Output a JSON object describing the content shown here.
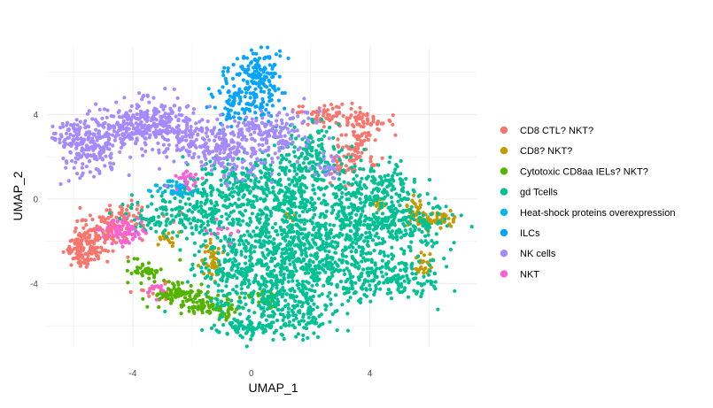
{
  "chart_data": {
    "type": "scatter",
    "xlabel": "UMAP_1",
    "ylabel": "UMAP_2",
    "xlim": [
      -6.9,
      7.6
    ],
    "ylim": [
      -7.0,
      7.2
    ],
    "x_ticks": [
      -4,
      0,
      4
    ],
    "y_ticks": [
      -4,
      0,
      4
    ],
    "x_tick_labels": [
      "-4",
      "0",
      "4"
    ],
    "y_tick_labels": [
      "-4",
      "0",
      "4"
    ],
    "grid": true,
    "theme": "minimal",
    "legend_position": "right",
    "series": [
      {
        "name": "CD8 CTL? NKT?",
        "color": "#F8766D",
        "clusters": [
          {
            "cx": -5.6,
            "cy": -2.3,
            "sx": 0.35,
            "sy": 0.45,
            "n": 140
          },
          {
            "cx": -4.9,
            "cy": -1.5,
            "sx": 0.45,
            "sy": 0.35,
            "n": 90
          },
          {
            "cx": -4.2,
            "cy": -0.8,
            "sx": 0.5,
            "sy": 0.3,
            "n": 50
          },
          {
            "cx": 2.7,
            "cy": 4.0,
            "sx": 0.6,
            "sy": 0.3,
            "n": 60
          },
          {
            "cx": 3.5,
            "cy": 2.4,
            "sx": 0.35,
            "sy": 0.7,
            "n": 80
          },
          {
            "cx": 3.9,
            "cy": 3.7,
            "sx": 0.45,
            "sy": 0.3,
            "n": 45
          },
          {
            "cx": 3.0,
            "cy": 1.5,
            "sx": 0.25,
            "sy": 0.5,
            "n": 30
          },
          {
            "cx": -3.2,
            "cy": -4.4,
            "sx": 0.3,
            "sy": 0.2,
            "n": 15
          }
        ]
      },
      {
        "name": "CD8? NKT?",
        "color": "#C49A00",
        "clusters": [
          {
            "cx": 6.1,
            "cy": -1.0,
            "sx": 0.4,
            "sy": 0.2,
            "n": 55
          },
          {
            "cx": 5.5,
            "cy": -0.4,
            "sx": 0.2,
            "sy": 0.25,
            "n": 20
          },
          {
            "cx": 5.8,
            "cy": -3.1,
            "sx": 0.15,
            "sy": 0.3,
            "n": 25
          },
          {
            "cx": -1.3,
            "cy": -2.9,
            "sx": 0.2,
            "sy": 0.4,
            "n": 45
          },
          {
            "cx": -2.8,
            "cy": -1.9,
            "sx": 0.2,
            "sy": 0.2,
            "n": 15
          },
          {
            "cx": 4.3,
            "cy": -0.3,
            "sx": 0.15,
            "sy": 0.15,
            "n": 10
          },
          {
            "cx": 1.3,
            "cy": -0.8,
            "sx": 0.1,
            "sy": 0.1,
            "n": 6
          }
        ]
      },
      {
        "name": "Cytotoxic CD8aa IELs? NKT?",
        "color": "#53B400",
        "clusters": [
          {
            "cx": -2.5,
            "cy": -4.5,
            "sx": 0.5,
            "sy": 0.35,
            "n": 90
          },
          {
            "cx": -1.3,
            "cy": -5.1,
            "sx": 0.5,
            "sy": 0.25,
            "n": 80
          },
          {
            "cx": -3.5,
            "cy": -3.4,
            "sx": 0.35,
            "sy": 0.35,
            "n": 40
          },
          {
            "cx": 0.4,
            "cy": -4.7,
            "sx": 0.4,
            "sy": 0.2,
            "n": 25
          }
        ]
      },
      {
        "name": "gd Tcells",
        "color": "#00C094",
        "clusters": [
          {
            "cx": 0.7,
            "cy": -4.0,
            "sx": 1.1,
            "sy": 1.2,
            "n": 380
          },
          {
            "cx": 2.2,
            "cy": -3.0,
            "sx": 0.7,
            "sy": 1.0,
            "n": 220
          },
          {
            "cx": 4.4,
            "cy": -3.6,
            "sx": 0.9,
            "sy": 0.6,
            "n": 220
          },
          {
            "cx": 4.9,
            "cy": -1.3,
            "sx": 1.0,
            "sy": 0.6,
            "n": 220
          },
          {
            "cx": 4.4,
            "cy": 0.6,
            "sx": 0.7,
            "sy": 0.6,
            "n": 150
          },
          {
            "cx": 3.3,
            "cy": -0.9,
            "sx": 0.6,
            "sy": 0.9,
            "n": 170
          },
          {
            "cx": 1.0,
            "cy": -1.5,
            "sx": 0.9,
            "sy": 1.0,
            "n": 260
          },
          {
            "cx": -1.6,
            "cy": -0.7,
            "sx": 0.9,
            "sy": 0.7,
            "n": 220
          },
          {
            "cx": -0.3,
            "cy": 0.8,
            "sx": 1.0,
            "sy": 0.6,
            "n": 200
          },
          {
            "cx": 2.0,
            "cy": 2.0,
            "sx": 0.7,
            "sy": 0.8,
            "n": 150
          },
          {
            "cx": 1.4,
            "cy": 0.3,
            "sx": 0.6,
            "sy": 0.7,
            "n": 130
          },
          {
            "cx": -0.2,
            "cy": -6.1,
            "sx": 0.6,
            "sy": 0.3,
            "n": 80
          },
          {
            "cx": 1.8,
            "cy": -5.6,
            "sx": 0.5,
            "sy": 0.4,
            "n": 70
          },
          {
            "cx": -0.8,
            "cy": -3.2,
            "sx": 0.5,
            "sy": 0.5,
            "n": 60
          },
          {
            "cx": -3.6,
            "cy": -1.0,
            "sx": 0.4,
            "sy": 0.3,
            "n": 40
          }
        ]
      },
      {
        "name": "Heat-shock proteins overexpression",
        "color": "#00B6EB",
        "clusters": [
          {
            "cx": -2.7,
            "cy": 0.5,
            "sx": 0.35,
            "sy": 0.22,
            "n": 45
          }
        ]
      },
      {
        "name": "ILCs",
        "color": "#06A4FF",
        "clusters": [
          {
            "cx": 0.2,
            "cy": 5.9,
            "sx": 0.45,
            "sy": 0.6,
            "n": 130
          },
          {
            "cx": -0.6,
            "cy": 4.7,
            "sx": 0.4,
            "sy": 0.6,
            "n": 80
          },
          {
            "cx": 0.5,
            "cy": 4.6,
            "sx": 0.4,
            "sy": 0.4,
            "n": 40
          }
        ]
      },
      {
        "name": "NK cells",
        "color": "#A58AFF",
        "clusters": [
          {
            "cx": -5.5,
            "cy": 2.4,
            "sx": 0.55,
            "sy": 0.7,
            "n": 170
          },
          {
            "cx": -4.2,
            "cy": 3.3,
            "sx": 0.7,
            "sy": 0.5,
            "n": 160
          },
          {
            "cx": -3.2,
            "cy": 3.6,
            "sx": 0.6,
            "sy": 0.6,
            "n": 180
          },
          {
            "cx": -1.8,
            "cy": 2.8,
            "sx": 0.6,
            "sy": 0.5,
            "n": 110
          },
          {
            "cx": -0.7,
            "cy": 2.3,
            "sx": 0.6,
            "sy": 0.7,
            "n": 150
          },
          {
            "cx": 0.7,
            "cy": 3.1,
            "sx": 0.7,
            "sy": 0.6,
            "n": 140
          },
          {
            "cx": -6.0,
            "cy": 3.1,
            "sx": 0.3,
            "sy": 0.3,
            "n": 40
          },
          {
            "cx": 2.5,
            "cy": 1.6,
            "sx": 0.3,
            "sy": 0.3,
            "n": 25
          }
        ]
      },
      {
        "name": "NKT",
        "color": "#FB61D7",
        "clusters": [
          {
            "cx": -4.3,
            "cy": -1.6,
            "sx": 0.35,
            "sy": 0.3,
            "n": 70
          },
          {
            "cx": -2.2,
            "cy": 0.9,
            "sx": 0.3,
            "sy": 0.3,
            "n": 25
          },
          {
            "cx": -3.2,
            "cy": -4.3,
            "sx": 0.2,
            "sy": 0.15,
            "n": 10
          },
          {
            "cx": -1.0,
            "cy": -1.6,
            "sx": 0.3,
            "sy": 0.3,
            "n": 10
          }
        ]
      }
    ]
  }
}
